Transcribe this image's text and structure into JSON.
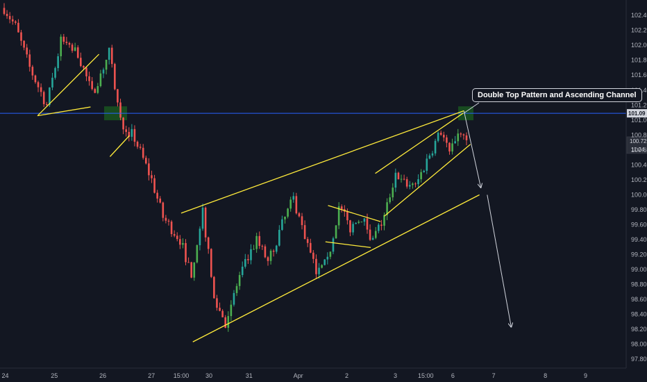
{
  "chart_data": {
    "type": "candlestick",
    "y_ticks": [
      "102.40",
      "102.20",
      "102.00",
      "101.80",
      "101.60",
      "101.40",
      "101.20",
      "101.00",
      "100.80",
      "100.60",
      "100.40",
      "100.20",
      "100.00",
      "99.80",
      "99.60",
      "99.40",
      "99.20",
      "99.00",
      "98.80",
      "98.60",
      "98.40",
      "98.20",
      "98.00",
      "97.80"
    ],
    "ylim": [
      97.7,
      102.55
    ],
    "x_ticks": [
      "24",
      "25",
      "26",
      "27",
      "15:00",
      "30",
      "31",
      "Apr",
      "2",
      "3",
      "15:00",
      "6",
      "7",
      "8",
      "9"
    ],
    "price_labels": {
      "level": "101.09",
      "last": "100.72",
      "countdown": "11:24"
    },
    "level_value": 101.09,
    "annotation": "Double Top Pattern and Ascending Channel",
    "colors": {
      "background": "#131722",
      "up": "#26a69a",
      "up_bright": "#4caf50",
      "down": "#ef5350",
      "trendline": "#ffeb3b",
      "level_line": "#2962ff",
      "zone": "#1b5e20",
      "projection": "#d1d4dc"
    },
    "pivots": [
      [
        0,
        102.5
      ],
      [
        4,
        102.25
      ],
      [
        9,
        101.7
      ],
      [
        15,
        101.2
      ],
      [
        20,
        102.05
      ],
      [
        26,
        101.9
      ],
      [
        31,
        101.35
      ],
      [
        37,
        101.9
      ],
      [
        41,
        101.0
      ],
      [
        46,
        100.75
      ],
      [
        52,
        100.2
      ],
      [
        56,
        99.7
      ],
      [
        62,
        99.4
      ],
      [
        66,
        98.95
      ],
      [
        70,
        99.8
      ],
      [
        74,
        98.6
      ],
      [
        78,
        98.3
      ],
      [
        83,
        98.9
      ],
      [
        89,
        99.4
      ],
      [
        93,
        99.1
      ],
      [
        98,
        99.6
      ],
      [
        102,
        99.95
      ],
      [
        106,
        99.45
      ],
      [
        110,
        98.95
      ],
      [
        114,
        99.1
      ],
      [
        118,
        99.85
      ],
      [
        122,
        99.55
      ],
      [
        126,
        99.7
      ],
      [
        130,
        99.4
      ],
      [
        134,
        99.7
      ],
      [
        138,
        100.3
      ],
      [
        142,
        100.1
      ],
      [
        146,
        100.2
      ],
      [
        150,
        100.55
      ],
      [
        154,
        100.85
      ],
      [
        157,
        100.55
      ],
      [
        160,
        100.85
      ],
      [
        163,
        100.7
      ]
    ],
    "candle_count": 164,
    "trendlines": [
      {
        "from": [
          0.058,
          0.303
        ],
        "to": [
          0.153,
          0.142
        ]
      },
      {
        "from": [
          0.058,
          0.303
        ],
        "to": [
          0.14,
          0.28
        ]
      },
      {
        "from": [
          0.17,
          0.41
        ],
        "to": [
          0.2,
          0.355
        ]
      },
      {
        "from": [
          0.28,
          0.558
        ],
        "to": [
          0.717,
          0.29
        ]
      },
      {
        "from": [
          0.298,
          0.895
        ],
        "to": [
          0.741,
          0.51
        ]
      },
      {
        "from": [
          0.507,
          0.538
        ],
        "to": [
          0.588,
          0.58
        ]
      },
      {
        "from": [
          0.503,
          0.633
        ],
        "to": [
          0.573,
          0.648
        ]
      },
      {
        "from": [
          0.58,
          0.454
        ],
        "to": [
          0.716,
          0.296
        ]
      },
      {
        "from": [
          0.594,
          0.566
        ],
        "to": [
          0.727,
          0.378
        ]
      }
    ],
    "projection": [
      [
        0.717,
        0.29
      ],
      [
        0.743,
        0.49
      ],
      [
        0.753,
        0.51
      ],
      [
        0.79,
        0.855
      ]
    ]
  }
}
